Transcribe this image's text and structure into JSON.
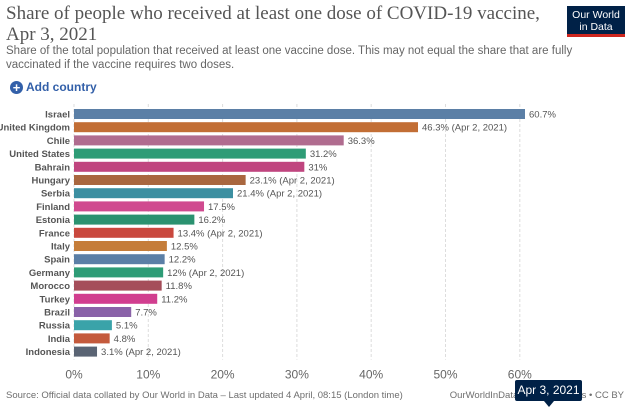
{
  "header": {
    "title": "Share of people who received at least one dose of COVID-19 vaccine, Apr 3, 2021",
    "subtitle": "Share of the total population that received at least one vaccine dose. This may not equal the share that are fully vaccinated if the vaccine requires two doses.",
    "logo_line1": "Our World",
    "logo_line2": "in Data"
  },
  "controls": {
    "add_country_icon": "plus-circle-icon",
    "add_country_label": "Add country"
  },
  "chart_data": {
    "type": "bar",
    "orientation": "horizontal",
    "categories": [
      "Israel",
      "United Kingdom",
      "Chile",
      "United States",
      "Bahrain",
      "Hungary",
      "Serbia",
      "Finland",
      "Estonia",
      "France",
      "Italy",
      "Spain",
      "Germany",
      "Morocco",
      "Turkey",
      "Brazil",
      "Russia",
      "India",
      "Indonesia"
    ],
    "values": [
      60.7,
      46.3,
      36.3,
      31.2,
      31,
      23.1,
      21.4,
      17.5,
      16.2,
      13.4,
      12.5,
      12.2,
      12,
      11.8,
      11.2,
      7.7,
      5.1,
      4.8,
      3.1
    ],
    "value_labels": [
      "60.7%",
      "46.3% (Apr 2, 2021)",
      "36.3%",
      "31.2%",
      "31%",
      "23.1% (Apr 2, 2021)",
      "21.4% (Apr 2, 2021)",
      "17.5%",
      "16.2%",
      "13.4% (Apr 2, 2021)",
      "12.5%",
      "12.2%",
      "12% (Apr 2, 2021)",
      "11.8%",
      "11.2%",
      "7.7%",
      "5.1%",
      "4.8%",
      "3.1% (Apr 2, 2021)"
    ],
    "colors": [
      "#5b7fa6",
      "#c26e35",
      "#b06c8f",
      "#2e9c76",
      "#c0457f",
      "#a9673f",
      "#3c8fa1",
      "#d04a8f",
      "#2b9270",
      "#c9483e",
      "#c57d3a",
      "#5b7fa6",
      "#2e9c76",
      "#a54e5a",
      "#d13e8f",
      "#8a62a8",
      "#3aa3a9",
      "#c45a3c",
      "#5a6474"
    ],
    "x_ticks": [
      "0%",
      "10%",
      "20%",
      "30%",
      "40%",
      "50%",
      "60%"
    ],
    "xlim": [
      0,
      60.7
    ],
    "grid": true
  },
  "footer": {
    "source": "Source: Official data collated by Our World in Data – Last updated 4 April, 08:15 (London time)",
    "right": "OurWorldInData.org/coronavirus • CC BY",
    "timeline_date": "Apr 3, 2021"
  }
}
